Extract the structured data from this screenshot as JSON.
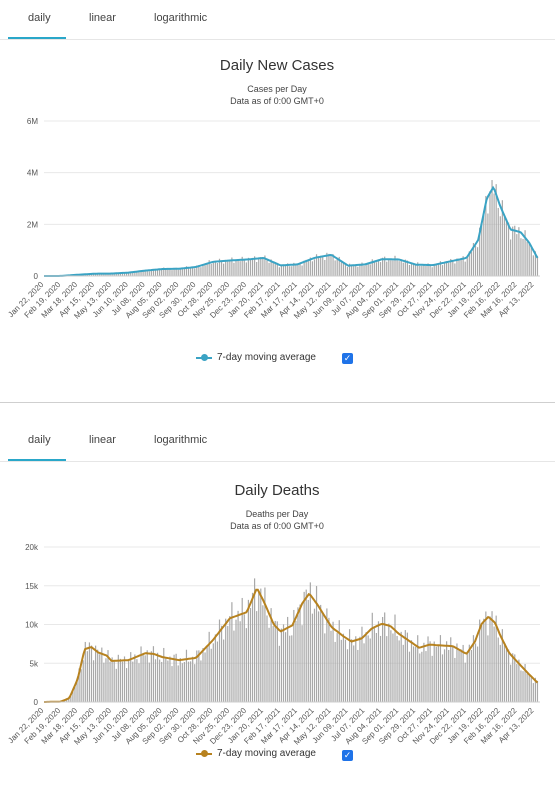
{
  "tabs_top": [
    {
      "label": "daily",
      "active": true
    },
    {
      "label": "linear",
      "active": false
    },
    {
      "label": "logarithmic",
      "active": false
    }
  ],
  "tabs_bottom": [
    {
      "label": "daily",
      "active": true
    },
    {
      "label": "linear",
      "active": false
    },
    {
      "label": "logarithmic",
      "active": false
    }
  ],
  "colors": {
    "tab_accent": "#2aa7c9",
    "bar": "#a8a8a8",
    "cases_line": "#3aa3c4",
    "deaths_line": "#b7821f",
    "checkbox": "#1f73e8"
  },
  "chart_data": [
    {
      "type": "bar",
      "title": "Daily New Cases",
      "subtitle_line1": "Cases per Day",
      "subtitle_line2": "Data as of 0:00 GMT+0",
      "ylim": [
        0,
        6000000
      ],
      "yticks": [
        {
          "value": 0,
          "label": "0"
        },
        {
          "value": 2000000,
          "label": "2M"
        },
        {
          "value": 4000000,
          "label": "4M"
        },
        {
          "value": 6000000,
          "label": "6M"
        }
      ],
      "categories": [
        "Jan 22, 2020",
        "Feb 19, 2020",
        "Mar 18, 2020",
        "Apr 15, 2020",
        "May 13, 2020",
        "Jun 10, 2020",
        "Jul 08, 2020",
        "Aug 05, 2020",
        "Sep 02, 2020",
        "Sep 30, 2020",
        "Oct 28, 2020",
        "Nov 25, 2020",
        "Dec 23, 2020",
        "Jan 20, 2021",
        "Feb 17, 2021",
        "Mar 17, 2021",
        "Apr 14, 2021",
        "May 12, 2021",
        "Jun 09, 2021",
        "Jul 07, 2021",
        "Aug 04, 2021",
        "Sep 01, 2021",
        "Sep 29, 2021",
        "Oct 27, 2021",
        "Nov 24, 2021",
        "Dec 22, 2021",
        "Jan 19, 2022",
        "Feb 16, 2022",
        "Mar 16, 2022",
        "Apr 13, 2022"
      ],
      "anchor_series": [
        [
          0,
          0
        ],
        [
          1,
          2000
        ],
        [
          2,
          50000
        ],
        [
          3,
          90000
        ],
        [
          4,
          95000
        ],
        [
          5,
          130000
        ],
        [
          6,
          210000
        ],
        [
          7,
          270000
        ],
        [
          8,
          280000
        ],
        [
          9,
          350000
        ],
        [
          10,
          550000
        ],
        [
          11,
          600000
        ],
        [
          12,
          640000
        ],
        [
          13,
          700000
        ],
        [
          14,
          410000
        ],
        [
          15,
          450000
        ],
        [
          16,
          700000
        ],
        [
          17,
          820000
        ],
        [
          18,
          400000
        ],
        [
          19,
          450000
        ],
        [
          20,
          650000
        ],
        [
          21,
          640000
        ],
        [
          22,
          440000
        ],
        [
          23,
          420000
        ],
        [
          24,
          560000
        ],
        [
          25,
          700000
        ],
        [
          25.7,
          1400000
        ],
        [
          26.2,
          3000000
        ],
        [
          26.6,
          3450000
        ],
        [
          27,
          2700000
        ],
        [
          27.6,
          1800000
        ],
        [
          28.2,
          1700000
        ],
        [
          28.7,
          1300000
        ],
        [
          29.2,
          700000
        ]
      ],
      "series": [
        {
          "name": "7-day moving average",
          "line_color": "#3aa3c4"
        }
      ],
      "legend_checked": true,
      "legend_placement": "bottom-center"
    },
    {
      "type": "bar",
      "title": "Daily Deaths",
      "subtitle_line1": "Deaths per Day",
      "subtitle_line2": "Data as of 0:00 GMT+0",
      "ylim": [
        0,
        20000
      ],
      "yticks": [
        {
          "value": 0,
          "label": "0"
        },
        {
          "value": 5000,
          "label": "5k"
        },
        {
          "value": 10000,
          "label": "10k"
        },
        {
          "value": 15000,
          "label": "15k"
        },
        {
          "value": 20000,
          "label": "20k"
        }
      ],
      "categories": [
        "Jan 22, 2020",
        "Feb 19, 2020",
        "Mar 18, 2020",
        "Apr 15, 2020",
        "May 13, 2020",
        "Jun 10, 2020",
        "Jul 08, 2020",
        "Aug 05, 2020",
        "Sep 02, 2020",
        "Sep 30, 2020",
        "Oct 28, 2020",
        "Nov 25, 2020",
        "Dec 23, 2020",
        "Jan 20, 2021",
        "Feb 17, 2021",
        "Mar 17, 2021",
        "Apr 14, 2021",
        "May 12, 2021",
        "Jun 09, 2021",
        "Jul 07, 2021",
        "Aug 04, 2021",
        "Sep 01, 2021",
        "Sep 29, 2021",
        "Oct 27, 2021",
        "Nov 24, 2021",
        "Dec 22, 2021",
        "Jan 19, 2022",
        "Feb 16, 2022",
        "Mar 16, 2022",
        "Apr 13, 2022"
      ],
      "anchor_series": [
        [
          0,
          0
        ],
        [
          1,
          50
        ],
        [
          1.5,
          500
        ],
        [
          2,
          3000
        ],
        [
          2.4,
          6800
        ],
        [
          2.8,
          7100
        ],
        [
          3.2,
          6400
        ],
        [
          3.7,
          6000
        ],
        [
          4,
          5300
        ],
        [
          5,
          5400
        ],
        [
          6,
          6300
        ],
        [
          6.5,
          6200
        ],
        [
          7,
          5800
        ],
        [
          8,
          5400
        ],
        [
          9,
          5700
        ],
        [
          10,
          8000
        ],
        [
          11,
          10800
        ],
        [
          12,
          11600
        ],
        [
          12.6,
          14700
        ],
        [
          13,
          13000
        ],
        [
          13.6,
          10000
        ],
        [
          14,
          9100
        ],
        [
          14.7,
          9900
        ],
        [
          15.3,
          12800
        ],
        [
          15.7,
          14000
        ],
        [
          16.2,
          12500
        ],
        [
          17,
          9700
        ],
        [
          17.7,
          8500
        ],
        [
          18.2,
          7800
        ],
        [
          18.8,
          8200
        ],
        [
          19.4,
          9500
        ],
        [
          20,
          10100
        ],
        [
          20.5,
          9800
        ],
        [
          21,
          8800
        ],
        [
          21.6,
          7900
        ],
        [
          22.2,
          7000
        ],
        [
          22.8,
          7400
        ],
        [
          23.5,
          7300
        ],
        [
          24.2,
          7200
        ],
        [
          25,
          6200
        ],
        [
          25.5,
          7800
        ],
        [
          25.9,
          10100
        ],
        [
          26.3,
          11000
        ],
        [
          26.7,
          10200
        ],
        [
          27,
          8600
        ],
        [
          27.5,
          6400
        ],
        [
          28,
          5200
        ],
        [
          28.6,
          3800
        ],
        [
          29.2,
          2500
        ]
      ],
      "series": [
        {
          "name": "7-day moving average",
          "line_color": "#b7821f"
        }
      ],
      "legend_checked": true,
      "legend_placement": "bottom-center"
    }
  ]
}
